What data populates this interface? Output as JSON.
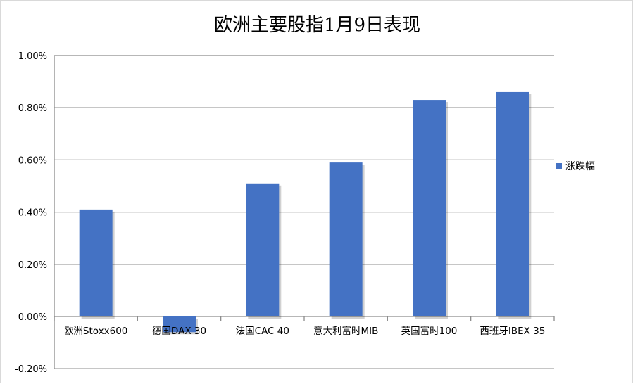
{
  "chart_data": {
    "type": "bar",
    "title": "欧洲主要股指1月9日表现",
    "categories": [
      "欧洲Stoxx600",
      "德国DAX 30",
      "法国CAC 40",
      "意大利富时MIB",
      "英国富时100",
      "西班牙IBEX 35"
    ],
    "series": [
      {
        "name": "涨跌幅",
        "values": [
          0.0041,
          -0.0006,
          0.0051,
          0.0059,
          0.0083,
          0.0086
        ],
        "color": "#4472c4"
      }
    ],
    "ylim": [
      -0.002,
      0.01
    ],
    "yticks": [
      "-0.20%",
      "0.00%",
      "0.20%",
      "0.40%",
      "0.60%",
      "0.80%",
      "1.00%"
    ],
    "grid": true,
    "legend": "right",
    "xlabel": "",
    "ylabel": ""
  }
}
